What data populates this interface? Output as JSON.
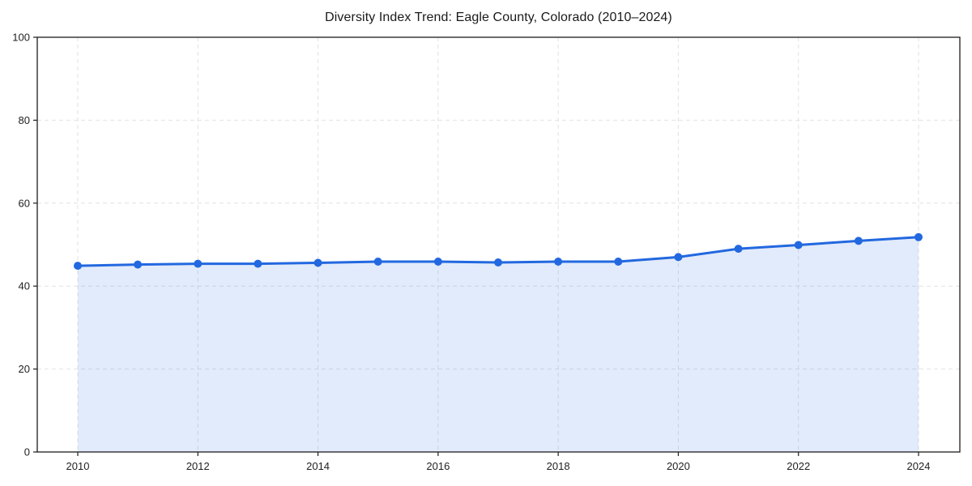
{
  "chart_data": {
    "type": "area",
    "title": "Diversity Index Trend: Eagle County, Colorado (2010–2024)",
    "x": [
      2010,
      2011,
      2012,
      2013,
      2014,
      2015,
      2016,
      2017,
      2018,
      2019,
      2020,
      2021,
      2022,
      2023,
      2024
    ],
    "series": [
      {
        "name": "Diversity Index",
        "values": [
          44.9,
          45.2,
          45.4,
          45.4,
          45.6,
          45.9,
          45.9,
          45.7,
          45.9,
          45.9,
          47.0,
          49.0,
          49.9,
          50.9,
          51.8
        ]
      }
    ],
    "xlabel": "",
    "ylabel": "",
    "ylim": [
      0,
      100
    ],
    "yticks": [
      0,
      20,
      40,
      60,
      80,
      100
    ],
    "xticks": [
      2010,
      2012,
      2014,
      2016,
      2018,
      2020,
      2022,
      2024
    ],
    "grid": true,
    "grid_style": "dashed",
    "legend": false,
    "colors": {
      "line": "#2268e0",
      "marker": "#2268e0",
      "fill": "#2268e0",
      "fill_opacity": 0.13,
      "grid": "#e2e2e2",
      "spine": "#1d1d1d",
      "tick_text": "#1f1f1f",
      "background": "#ffffff"
    }
  }
}
